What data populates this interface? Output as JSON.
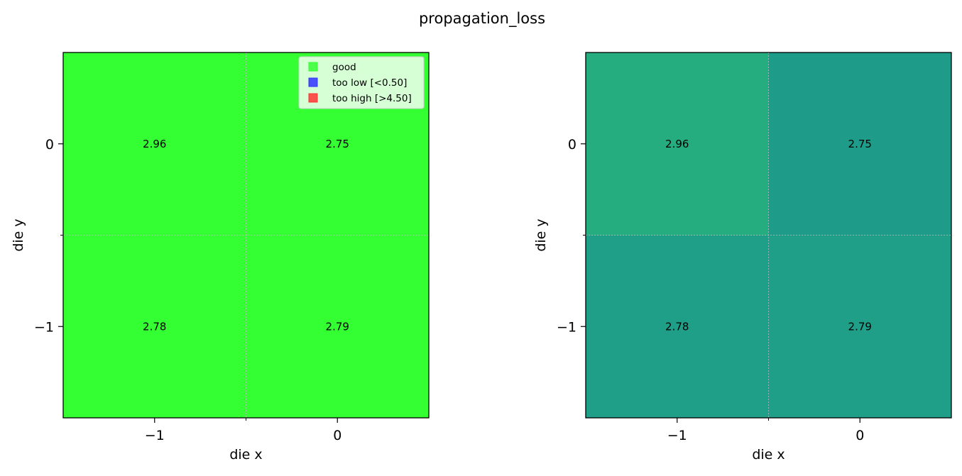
{
  "figure_title": "propagation_loss",
  "chart_data": [
    {
      "type": "heatmap",
      "title": "",
      "xlabel": "die x",
      "ylabel": "die y",
      "x_ticks": [
        "−1",
        "0"
      ],
      "y_ticks": [
        "0",
        "−1"
      ],
      "x_values": [
        -1,
        0
      ],
      "y_values": [
        0,
        -1
      ],
      "xlim": [
        -1.5,
        0.5
      ],
      "ylim": [
        -1.5,
        0.5
      ],
      "cells": [
        {
          "x": -1,
          "y": 0,
          "value": 2.96,
          "label": "2.96",
          "color": "#33ff33"
        },
        {
          "x": 0,
          "y": 0,
          "value": 2.75,
          "label": "2.75",
          "color": "#33ff33"
        },
        {
          "x": -1,
          "y": -1,
          "value": 2.78,
          "label": "2.78",
          "color": "#33ff33"
        },
        {
          "x": 0,
          "y": -1,
          "value": 2.79,
          "label": "2.79",
          "color": "#33ff33"
        }
      ],
      "grid": true,
      "grid_color": "#bbbbbb",
      "legend_position": "top-right",
      "legend": [
        {
          "label": "good",
          "color": "#33ff33"
        },
        {
          "label": "too low [<0.50]",
          "color": "#3333ff"
        },
        {
          "label": "too high [>4.50]",
          "color": "#ff3333"
        }
      ]
    },
    {
      "type": "heatmap",
      "title": "",
      "xlabel": "die x",
      "ylabel": "die y",
      "x_ticks": [
        "−1",
        "0"
      ],
      "y_ticks": [
        "0",
        "−1"
      ],
      "x_values": [
        -1,
        0
      ],
      "y_values": [
        0,
        -1
      ],
      "xlim": [
        -1.5,
        0.5
      ],
      "ylim": [
        -1.5,
        0.5
      ],
      "cells": [
        {
          "x": -1,
          "y": 0,
          "value": 2.96,
          "label": "2.96",
          "color": "#25ad80"
        },
        {
          "x": 0,
          "y": 0,
          "value": 2.75,
          "label": "2.75",
          "color": "#1e9c89"
        },
        {
          "x": -1,
          "y": -1,
          "value": 2.78,
          "label": "2.78",
          "color": "#1f9e88"
        },
        {
          "x": 0,
          "y": -1,
          "value": 2.79,
          "label": "2.79",
          "color": "#1f9f88"
        }
      ],
      "grid": true,
      "grid_color": "#bbbbbb",
      "legend": []
    }
  ]
}
